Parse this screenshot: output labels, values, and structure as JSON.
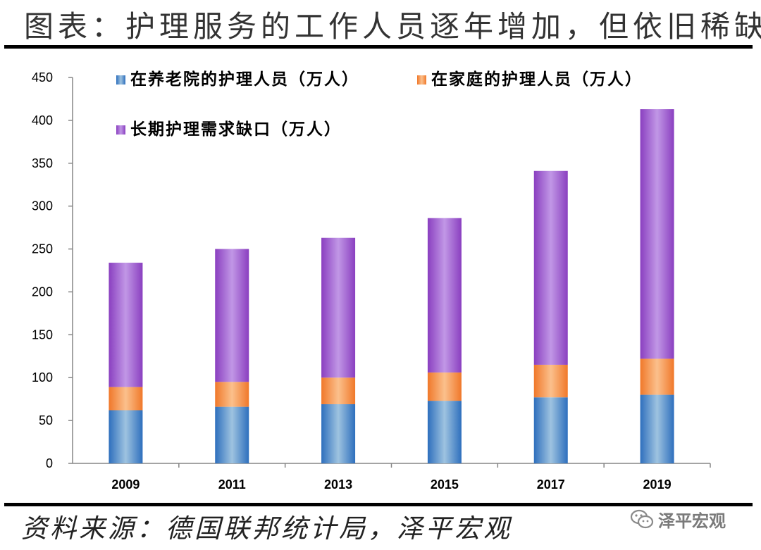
{
  "title": "图表：护理服务的工作人员逐年增加，但依旧稀缺",
  "source": "资料来源：德国联邦统计局，泽平宏观",
  "watermark": {
    "text": "泽平宏观",
    "icon": "wechat-icon"
  },
  "chart_data": {
    "type": "bar",
    "stacked": true,
    "categories": [
      "2009",
      "2011",
      "2013",
      "2015",
      "2017",
      "2019"
    ],
    "series": [
      {
        "name": "在养老院的护理人员（万人）",
        "values": [
          62,
          66,
          69,
          73,
          77,
          80
        ],
        "color": "#4f86c6"
      },
      {
        "name": "在家庭的护理人员（万人）",
        "values": [
          27,
          29,
          31,
          33,
          38,
          42
        ],
        "color": "#f79646"
      },
      {
        "name": "长期护理需求缺口（万人）",
        "values": [
          145,
          155,
          163,
          180,
          226,
          291
        ],
        "color": "#9b5fc0"
      }
    ],
    "ylim": [
      0,
      450
    ],
    "yticks": [
      0,
      50,
      100,
      150,
      200,
      250,
      300,
      350,
      400,
      450
    ],
    "legend": "top-left",
    "grid": false
  }
}
